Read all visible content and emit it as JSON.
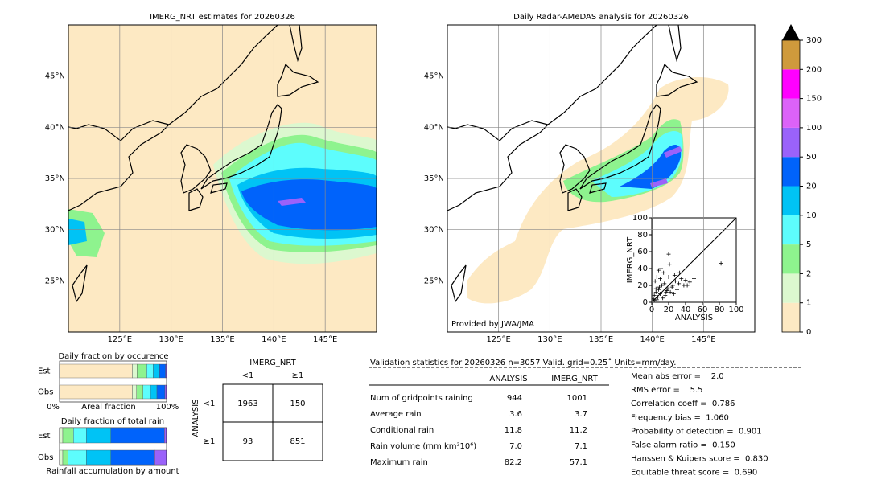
{
  "chart_data": [
    {
      "type": "map",
      "title": "IMERG_NRT estimates for 20260326",
      "xlim": [
        120,
        150
      ],
      "ylim": [
        20,
        50
      ],
      "xticks": [
        {
          "value": 125,
          "label": "125°E"
        },
        {
          "value": 130,
          "label": "130°E"
        },
        {
          "value": 135,
          "label": "135°E"
        },
        {
          "value": 140,
          "label": "140°E"
        },
        {
          "value": 145,
          "label": "145°E"
        }
      ],
      "yticks": [
        {
          "value": 25,
          "label": "25°N"
        },
        {
          "value": 30,
          "label": "30°N"
        },
        {
          "value": 35,
          "label": "35°N"
        },
        {
          "value": 40,
          "label": "40°N"
        },
        {
          "value": 45,
          "label": "45°N"
        }
      ],
      "grid": true
    },
    {
      "type": "map",
      "title": "Daily Radar-AMeDAS analysis for 20260326",
      "credit": "Provided by JWA/JMA",
      "xlim": [
        120,
        150
      ],
      "ylim": [
        20,
        50
      ],
      "xticks": [
        {
          "value": 125,
          "label": "125°E"
        },
        {
          "value": 130,
          "label": "130°E"
        },
        {
          "value": 135,
          "label": "135°E"
        },
        {
          "value": 140,
          "label": "140°E"
        },
        {
          "value": 145,
          "label": "145°E"
        }
      ],
      "yticks": [
        {
          "value": 25,
          "label": "25°N"
        },
        {
          "value": 30,
          "label": "30°N"
        },
        {
          "value": 35,
          "label": "35°N"
        },
        {
          "value": 40,
          "label": "40°N"
        },
        {
          "value": 45,
          "label": "45°N"
        }
      ],
      "grid": true
    },
    {
      "type": "colorbar",
      "bounds": [
        0,
        1,
        2,
        5,
        10,
        20,
        50,
        100,
        150,
        200,
        300
      ],
      "colors": [
        "#fde9c3",
        "#dcf8cf",
        "#8ef38e",
        "#5dfdfd",
        "#00c3f5",
        "#0063fb",
        "#9a62fa",
        "#dc62f8",
        "#ff00ff",
        "#cf9a3c"
      ],
      "extend_color": "#000000"
    },
    {
      "type": "scatter",
      "xlabel": "ANALYSIS",
      "ylabel": "IMERG_NRT",
      "xlim": [
        0,
        100
      ],
      "ylim": [
        0,
        100
      ],
      "xticks": [
        0,
        20,
        40,
        60,
        80,
        100
      ],
      "yticks": [
        0,
        20,
        40,
        60,
        80,
        100
      ],
      "color": "#000000",
      "x": [
        2,
        3,
        5,
        6,
        8,
        10,
        12,
        4,
        7,
        9,
        15,
        18,
        20,
        22,
        25,
        14,
        16,
        28,
        30,
        32,
        35,
        11,
        13,
        6,
        3,
        24,
        27,
        38,
        40,
        45,
        19,
        21,
        10,
        5,
        33,
        42,
        17,
        26,
        50,
        8,
        82,
        20
      ],
      "values": [
        4,
        8,
        12,
        3,
        15,
        10,
        20,
        25,
        6,
        18,
        22,
        14,
        30,
        12,
        20,
        35,
        8,
        25,
        15,
        22,
        28,
        40,
        5,
        30,
        2,
        18,
        32,
        20,
        26,
        24,
        16,
        45,
        28,
        16,
        35,
        20,
        12,
        10,
        28,
        38,
        46,
        57
      ]
    },
    {
      "type": "stacked_bar",
      "title": "Daily fraction by occurence",
      "xlabel": "Areal fraction",
      "categories": [
        "Est",
        "Obs"
      ],
      "xlim": [
        0,
        1
      ],
      "xticks": [
        {
          "value": 0,
          "label": "0%"
        },
        {
          "value": 1,
          "label": "100%"
        }
      ],
      "series": [
        {
          "color": "#fde9c3",
          "values": [
            0.68,
            0.68
          ]
        },
        {
          "color": "#dcf8cf",
          "values": [
            0.045,
            0.04
          ]
        },
        {
          "color": "#8ef38e",
          "values": [
            0.09,
            0.06
          ]
        },
        {
          "color": "#5dfdfd",
          "values": [
            0.06,
            0.07
          ]
        },
        {
          "color": "#00c3f5",
          "values": [
            0.06,
            0.06
          ]
        },
        {
          "color": "#0063fb",
          "values": [
            0.055,
            0.075
          ]
        },
        {
          "color": "#9a62fa",
          "values": [
            0.01,
            0.015
          ]
        }
      ]
    },
    {
      "type": "stacked_bar",
      "title": "Daily fraction of total rain",
      "xlabel": "Rainfall accumulation by amount",
      "categories": [
        "Est",
        "Obs"
      ],
      "xlim": [
        0,
        1
      ],
      "series": [
        {
          "color": "#dcf8cf",
          "values": [
            0.03,
            0.03
          ]
        },
        {
          "color": "#8ef38e",
          "values": [
            0.1,
            0.05
          ]
        },
        {
          "color": "#5dfdfd",
          "values": [
            0.12,
            0.17
          ]
        },
        {
          "color": "#00c3f5",
          "values": [
            0.23,
            0.23
          ]
        },
        {
          "color": "#0063fb",
          "values": [
            0.5,
            0.41
          ]
        },
        {
          "color": "#9a62fa",
          "values": [
            0.02,
            0.11
          ]
        }
      ]
    }
  ],
  "contingency": {
    "title": "IMERG_NRT",
    "row_title": "ANALYSIS",
    "columns": [
      "<1",
      "≥1"
    ],
    "rows": [
      "<1",
      "≥1"
    ],
    "cells": [
      [
        1963,
        150
      ],
      [
        93,
        851
      ]
    ]
  },
  "validation": {
    "title": "Validation statistics for 20260326  n=3057 Valid. grid=0.25˚ Units=mm/day.",
    "columns": [
      "ANALYSIS",
      "IMERG_NRT"
    ],
    "rows": [
      [
        "Num of gridpoints raining",
        "944",
        "1001"
      ],
      [
        "Average rain",
        "3.6",
        "3.7"
      ],
      [
        "Conditional rain",
        "11.8",
        "11.2"
      ],
      [
        "Rain volume (mm km²10⁶)",
        "7.0",
        "7.1"
      ],
      [
        "Maximum rain",
        "82.2",
        "57.1"
      ]
    ],
    "scores": [
      "Mean abs error =    2.0",
      "RMS error =    5.5",
      "Correlation coeff =  0.786",
      "Frequency bias =  1.060",
      "Probability of detection =  0.901",
      "False alarm ratio =  0.150",
      "Hanssen & Kuipers score =  0.830",
      "Equitable threat score =  0.690"
    ]
  }
}
